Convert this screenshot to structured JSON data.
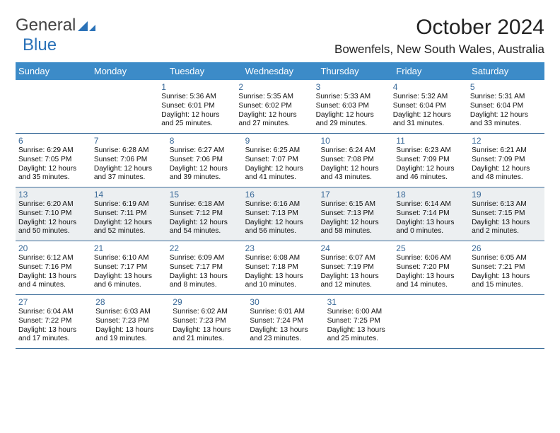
{
  "brand": {
    "part1": "General",
    "part2": "Blue"
  },
  "title": {
    "month": "October 2024",
    "location": "Bowenfels, New South Wales, Australia"
  },
  "colors": {
    "header_bg": "#3c8bc8",
    "header_text": "#ffffff",
    "daynum": "#3a6a99",
    "highlight_bg": "#eceff1",
    "rule": "#3c6d9a"
  },
  "day_labels": [
    "Sunday",
    "Monday",
    "Tuesday",
    "Wednesday",
    "Thursday",
    "Friday",
    "Saturday"
  ],
  "firstDayIndex": 2,
  "daysInMonth": 31,
  "highlightFrom": 13,
  "highlightTo": 19,
  "days": {
    "1": {
      "sunrise": "5:36 AM",
      "sunset": "6:01 PM",
      "daylight": "12 hours and 25 minutes."
    },
    "2": {
      "sunrise": "5:35 AM",
      "sunset": "6:02 PM",
      "daylight": "12 hours and 27 minutes."
    },
    "3": {
      "sunrise": "5:33 AM",
      "sunset": "6:03 PM",
      "daylight": "12 hours and 29 minutes."
    },
    "4": {
      "sunrise": "5:32 AM",
      "sunset": "6:04 PM",
      "daylight": "12 hours and 31 minutes."
    },
    "5": {
      "sunrise": "5:31 AM",
      "sunset": "6:04 PM",
      "daylight": "12 hours and 33 minutes."
    },
    "6": {
      "sunrise": "6:29 AM",
      "sunset": "7:05 PM",
      "daylight": "12 hours and 35 minutes."
    },
    "7": {
      "sunrise": "6:28 AM",
      "sunset": "7:06 PM",
      "daylight": "12 hours and 37 minutes."
    },
    "8": {
      "sunrise": "6:27 AM",
      "sunset": "7:06 PM",
      "daylight": "12 hours and 39 minutes."
    },
    "9": {
      "sunrise": "6:25 AM",
      "sunset": "7:07 PM",
      "daylight": "12 hours and 41 minutes."
    },
    "10": {
      "sunrise": "6:24 AM",
      "sunset": "7:08 PM",
      "daylight": "12 hours and 43 minutes."
    },
    "11": {
      "sunrise": "6:23 AM",
      "sunset": "7:09 PM",
      "daylight": "12 hours and 46 minutes."
    },
    "12": {
      "sunrise": "6:21 AM",
      "sunset": "7:09 PM",
      "daylight": "12 hours and 48 minutes."
    },
    "13": {
      "sunrise": "6:20 AM",
      "sunset": "7:10 PM",
      "daylight": "12 hours and 50 minutes."
    },
    "14": {
      "sunrise": "6:19 AM",
      "sunset": "7:11 PM",
      "daylight": "12 hours and 52 minutes."
    },
    "15": {
      "sunrise": "6:18 AM",
      "sunset": "7:12 PM",
      "daylight": "12 hours and 54 minutes."
    },
    "16": {
      "sunrise": "6:16 AM",
      "sunset": "7:13 PM",
      "daylight": "12 hours and 56 minutes."
    },
    "17": {
      "sunrise": "6:15 AM",
      "sunset": "7:13 PM",
      "daylight": "12 hours and 58 minutes."
    },
    "18": {
      "sunrise": "6:14 AM",
      "sunset": "7:14 PM",
      "daylight": "13 hours and 0 minutes."
    },
    "19": {
      "sunrise": "6:13 AM",
      "sunset": "7:15 PM",
      "daylight": "13 hours and 2 minutes."
    },
    "20": {
      "sunrise": "6:12 AM",
      "sunset": "7:16 PM",
      "daylight": "13 hours and 4 minutes."
    },
    "21": {
      "sunrise": "6:10 AM",
      "sunset": "7:17 PM",
      "daylight": "13 hours and 6 minutes."
    },
    "22": {
      "sunrise": "6:09 AM",
      "sunset": "7:17 PM",
      "daylight": "13 hours and 8 minutes."
    },
    "23": {
      "sunrise": "6:08 AM",
      "sunset": "7:18 PM",
      "daylight": "13 hours and 10 minutes."
    },
    "24": {
      "sunrise": "6:07 AM",
      "sunset": "7:19 PM",
      "daylight": "13 hours and 12 minutes."
    },
    "25": {
      "sunrise": "6:06 AM",
      "sunset": "7:20 PM",
      "daylight": "13 hours and 14 minutes."
    },
    "26": {
      "sunrise": "6:05 AM",
      "sunset": "7:21 PM",
      "daylight": "13 hours and 15 minutes."
    },
    "27": {
      "sunrise": "6:04 AM",
      "sunset": "7:22 PM",
      "daylight": "13 hours and 17 minutes."
    },
    "28": {
      "sunrise": "6:03 AM",
      "sunset": "7:23 PM",
      "daylight": "13 hours and 19 minutes."
    },
    "29": {
      "sunrise": "6:02 AM",
      "sunset": "7:23 PM",
      "daylight": "13 hours and 21 minutes."
    },
    "30": {
      "sunrise": "6:01 AM",
      "sunset": "7:24 PM",
      "daylight": "13 hours and 23 minutes."
    },
    "31": {
      "sunrise": "6:00 AM",
      "sunset": "7:25 PM",
      "daylight": "13 hours and 25 minutes."
    }
  },
  "labels": {
    "sunrise_prefix": "Sunrise: ",
    "sunset_prefix": "Sunset: ",
    "daylight_prefix": "Daylight: "
  }
}
